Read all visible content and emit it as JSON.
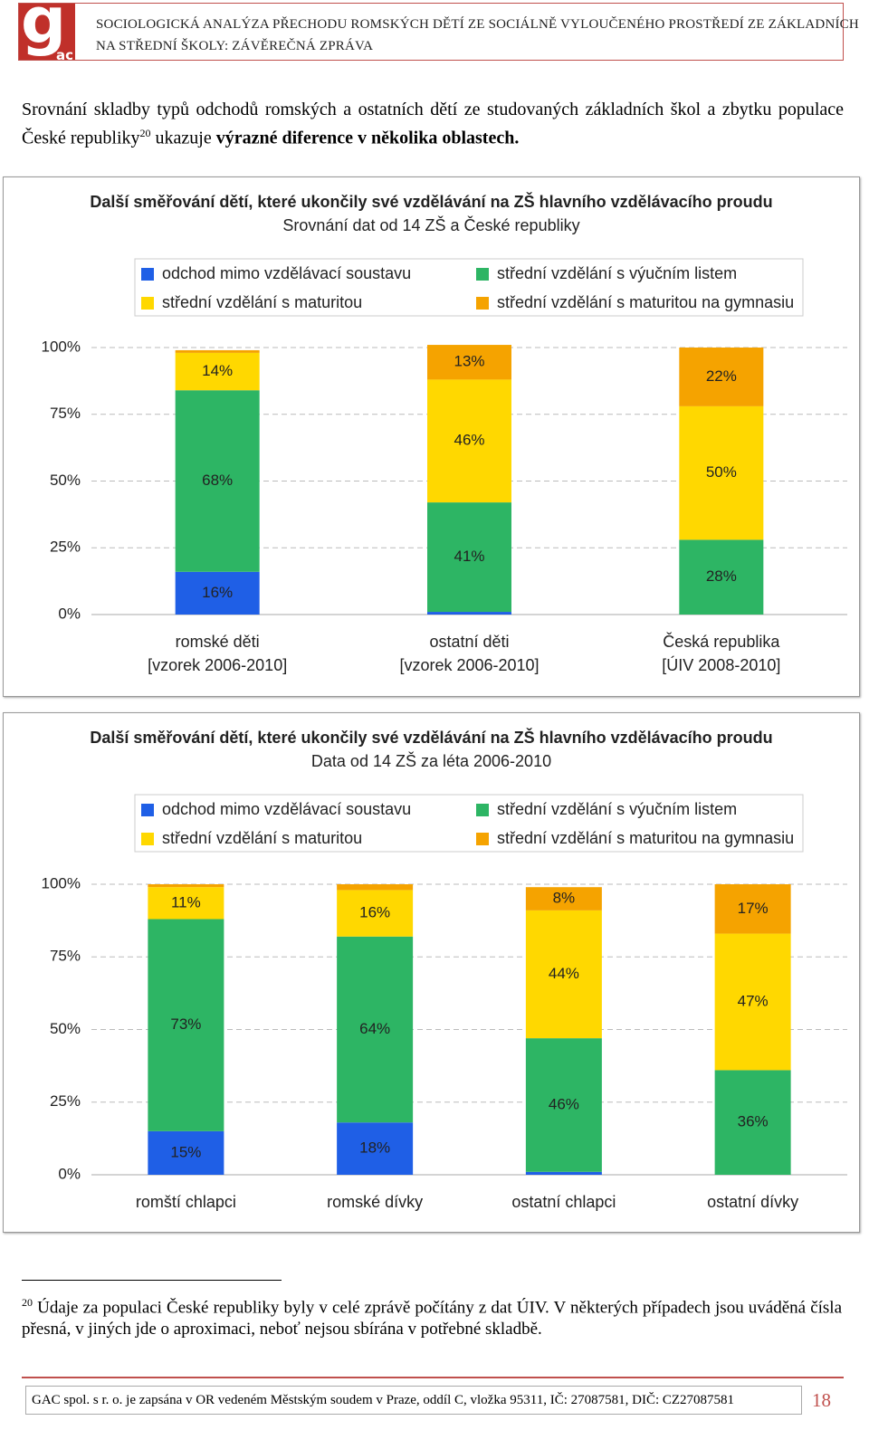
{
  "header": {
    "logo": [
      "g",
      "ac"
    ],
    "title": [
      "SOCIOLOGICKÁ ANALÝZA PŘECHODU ROMSKÝCH DĚTÍ ZE SOCIÁLNĚ VYLOUČENÉHO PROSTŘEDÍ ZE ZÁKLADNÍCH",
      "NA STŘEDNÍ ŠKOLY: ZÁVĚREČNÁ ZPRÁVA"
    ]
  },
  "intro": {
    "text": "Srovnání skladby typů odchodů romských a ostatních dětí ze studovaných základních škol a zbytku populace České republiky",
    "footnote_ref": "20",
    "middle": " ukazuje ",
    "bold": "výrazné diference v několika oblastech."
  },
  "chart_data": [
    {
      "type": "stacked-bar",
      "title": "Další směřování dětí, které ukončily své vzdělávání na ZŠ hlavního vzdělávacího proudu",
      "subtitle": "Srovnání dat od 14 ZŠ a České republiky",
      "categories": [
        [
          "romské děti",
          "[vzorek 2006-2010]"
        ],
        [
          "ostatní děti",
          "[vzorek 2006-2010]"
        ],
        [
          "Česká republika",
          "[ÚIV 2008-2010]"
        ]
      ],
      "series": [
        {
          "name": "odchod mimo vzdělávací soustavu",
          "color": "#1f5fe6",
          "values": [
            16,
            1,
            0
          ],
          "value_labels": [
            "16%",
            null,
            null
          ]
        },
        {
          "name": "střední vzdělání s výučním listem",
          "color": "#2db564",
          "values": [
            68,
            41,
            28
          ],
          "value_labels": [
            "68%",
            "41%",
            "28%"
          ]
        },
        {
          "name": "střední vzdělání s maturitou",
          "color": "#ffd800",
          "values": [
            14,
            46,
            50
          ],
          "value_labels": [
            "14%",
            "46%",
            "50%"
          ]
        },
        {
          "name": "střední vzdělání s maturitou na gymnasiu",
          "color": "#f5a300",
          "values": [
            1,
            13,
            22
          ],
          "value_labels": [
            null,
            "13%",
            "22%"
          ]
        }
      ],
      "ylim": [
        0,
        100
      ],
      "yticks": [
        {
          "value": 0,
          "label": "0%"
        },
        {
          "value": 25,
          "label": "25%"
        },
        {
          "value": 50,
          "label": "50%"
        },
        {
          "value": 75,
          "label": "75%"
        },
        {
          "value": 100,
          "label": "100%"
        }
      ],
      "grid": true,
      "legend": "top"
    },
    {
      "type": "stacked-bar",
      "title": "Další směřování dětí, které ukončily své vzdělávání na ZŠ hlavního vzdělávacího proudu",
      "subtitle": "Data od 14 ZŠ za léta 2006-2010",
      "categories": [
        [
          "romští chlapci"
        ],
        [
          "romské dívky"
        ],
        [
          "ostatní chlapci"
        ],
        [
          "ostatní dívky"
        ]
      ],
      "series": [
        {
          "name": "odchod mimo vzdělávací soustavu",
          "color": "#1f5fe6",
          "values": [
            15,
            18,
            1,
            0
          ],
          "value_labels": [
            "15%",
            "18%",
            null,
            null
          ]
        },
        {
          "name": "střední vzdělání s výučním listem",
          "color": "#2db564",
          "values": [
            73,
            64,
            46,
            36
          ],
          "value_labels": [
            "73%",
            "64%",
            "46%",
            "36%"
          ]
        },
        {
          "name": "střední vzdělání s maturitou",
          "color": "#ffd800",
          "values": [
            11,
            16,
            44,
            47
          ],
          "value_labels": [
            "11%",
            "16%",
            "44%",
            "47%"
          ]
        },
        {
          "name": "střední vzdělání s maturitou na gymnasiu",
          "color": "#f5a300",
          "values": [
            1,
            2,
            8,
            17
          ],
          "value_labels": [
            null,
            null,
            "8%",
            "17%"
          ]
        }
      ],
      "ylim": [
        0,
        100
      ],
      "yticks": [
        {
          "value": 0,
          "label": "0%"
        },
        {
          "value": 25,
          "label": "25%"
        },
        {
          "value": 50,
          "label": "50%"
        },
        {
          "value": 75,
          "label": "75%"
        },
        {
          "value": 100,
          "label": "100%"
        }
      ],
      "grid": true,
      "legend": "top"
    }
  ],
  "footnote": {
    "number": "20",
    "text": "Údaje za populaci České republiky byly v celé zprávě počítány z dat ÚIV. V některých případech jsou uváděná čísla přesná, v jiných jde o aproximaci, neboť nejsou sbírána v potřebné skladbě."
  },
  "footer": {
    "text": "GAC spol. s r. o. je zapsána v OR vedeném Městským soudem v Praze, oddíl C, vložka 95311, IČ: 27087581, DIČ: CZ27087581",
    "page": "18"
  }
}
